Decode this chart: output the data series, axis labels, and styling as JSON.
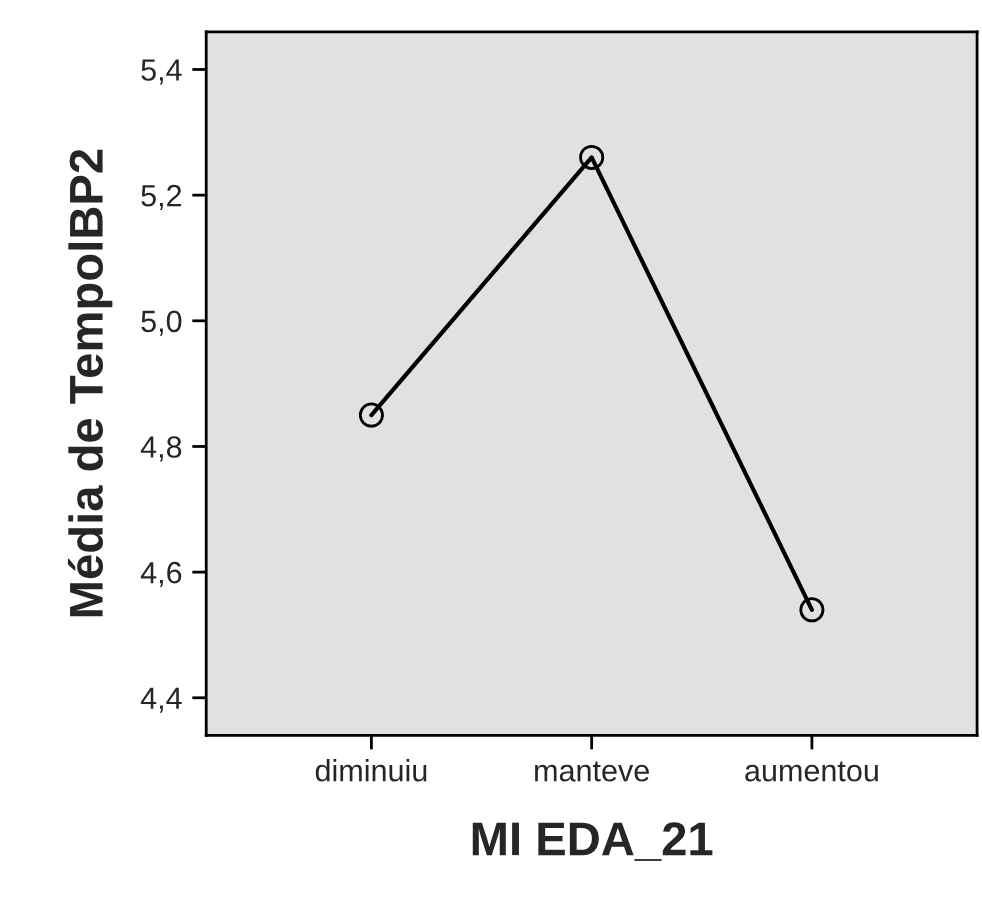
{
  "chart_data": {
    "type": "line",
    "xlabel": "MI EDA_21",
    "ylabel": "Média de TempolBP2",
    "categories": [
      "diminuiu",
      "manteve",
      "aumentou"
    ],
    "series": [
      {
        "color": "#000000",
        "values": [
          4.85,
          5.26,
          4.54
        ]
      }
    ],
    "ylim": [
      4.34,
      5.46
    ],
    "yticks": [
      {
        "value": 4.4,
        "label": "4,4"
      },
      {
        "value": 4.6,
        "label": "4,6"
      },
      {
        "value": 4.8,
        "label": "4,8"
      },
      {
        "value": 5.0,
        "label": "5,0"
      },
      {
        "value": 5.2,
        "label": "5,2"
      },
      {
        "value": 5.4,
        "label": "5,4"
      }
    ],
    "marker": "circle",
    "line_style": "solid",
    "grid": false,
    "legend": false
  }
}
